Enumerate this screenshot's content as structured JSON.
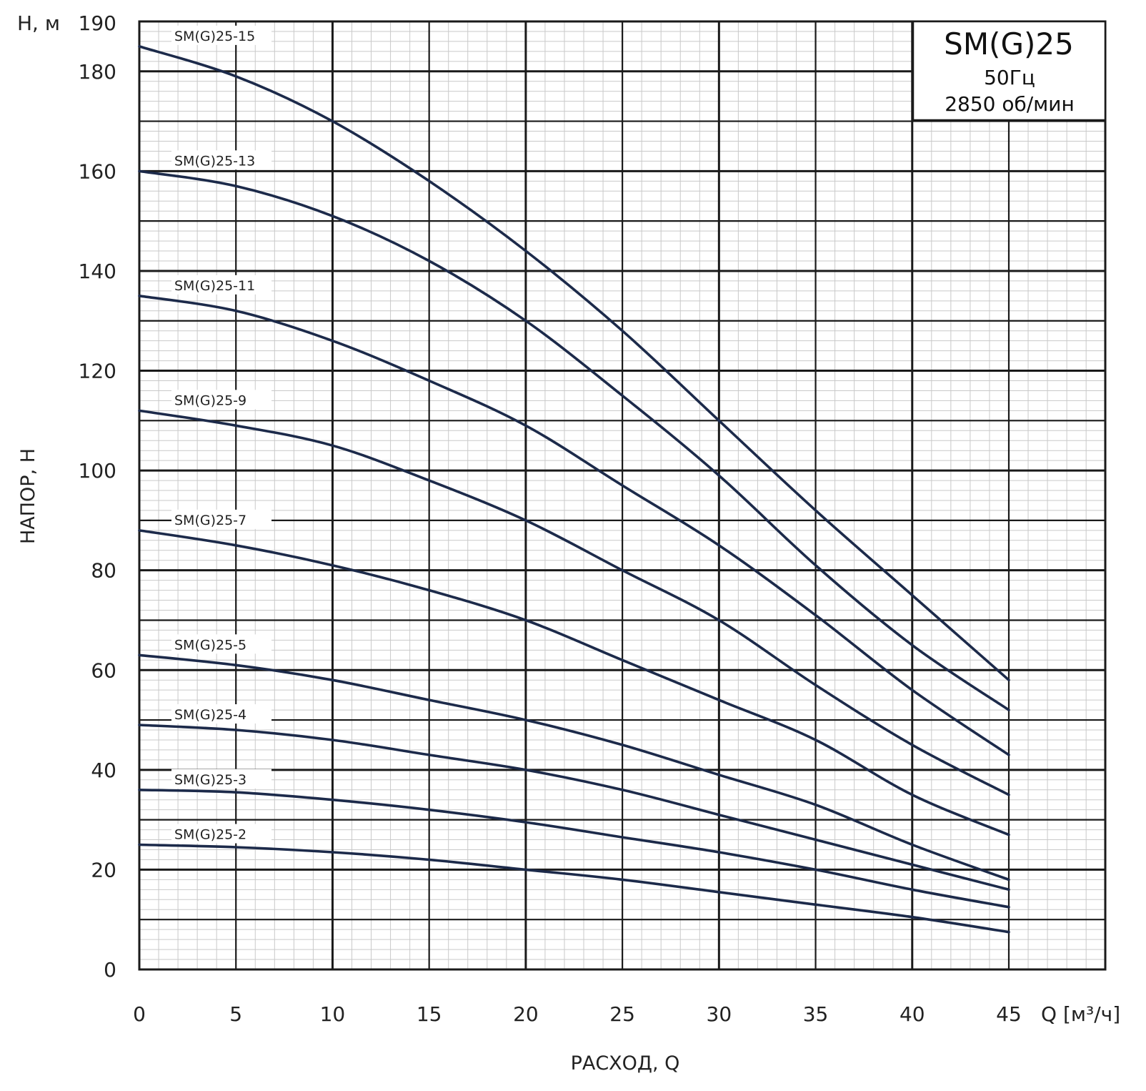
{
  "chart_data": {
    "type": "line",
    "title": "SM(G)25",
    "subtitle_lines": [
      "50Гц",
      "2850 об/мин"
    ],
    "xlabel": "РАСХОД, Q",
    "ylabel": "НАПОР, Н",
    "x_unit_label": "Q [м³/ч]",
    "y_unit_label": "Н, м",
    "xlim": [
      0,
      50
    ],
    "ylim": [
      0,
      190
    ],
    "x_ticks": [
      0,
      5,
      10,
      15,
      20,
      25,
      30,
      35,
      40,
      45
    ],
    "y_ticks": [
      0,
      20,
      40,
      60,
      80,
      100,
      120,
      140,
      160,
      180,
      190
    ],
    "grid": true,
    "x": [
      0,
      5,
      10,
      15,
      20,
      25,
      30,
      35,
      40,
      45
    ],
    "series": [
      {
        "name": "SM(G)25-15",
        "values": [
          185,
          179,
          170,
          158,
          144,
          128,
          110,
          92,
          75,
          58
        ]
      },
      {
        "name": "SM(G)25-13",
        "values": [
          160,
          157,
          151,
          142,
          130,
          115,
          99,
          81,
          65,
          52
        ]
      },
      {
        "name": "SM(G)25-11",
        "values": [
          135,
          132,
          126,
          118,
          109,
          97,
          85,
          71,
          56,
          43
        ]
      },
      {
        "name": "SM(G)25-9",
        "values": [
          112,
          109,
          105,
          98,
          90,
          80,
          70,
          57,
          45,
          35
        ]
      },
      {
        "name": "SM(G)25-7",
        "values": [
          88,
          85,
          81,
          76,
          70,
          62,
          54,
          46,
          35,
          27
        ]
      },
      {
        "name": "SM(G)25-5",
        "values": [
          63,
          61,
          58,
          54,
          50,
          45,
          39,
          33,
          25,
          18
        ]
      },
      {
        "name": "SM(G)25-4",
        "values": [
          49,
          48,
          46,
          43,
          40,
          36,
          31,
          26,
          21,
          16
        ]
      },
      {
        "name": "SM(G)25-3",
        "values": [
          36,
          35.5,
          34,
          32,
          29.5,
          26.5,
          23.5,
          20,
          16,
          12.5
        ]
      },
      {
        "name": "SM(G)25-2",
        "values": [
          25,
          24.5,
          23.5,
          22,
          20,
          18,
          15.5,
          13,
          10.5,
          7.5
        ]
      }
    ]
  }
}
